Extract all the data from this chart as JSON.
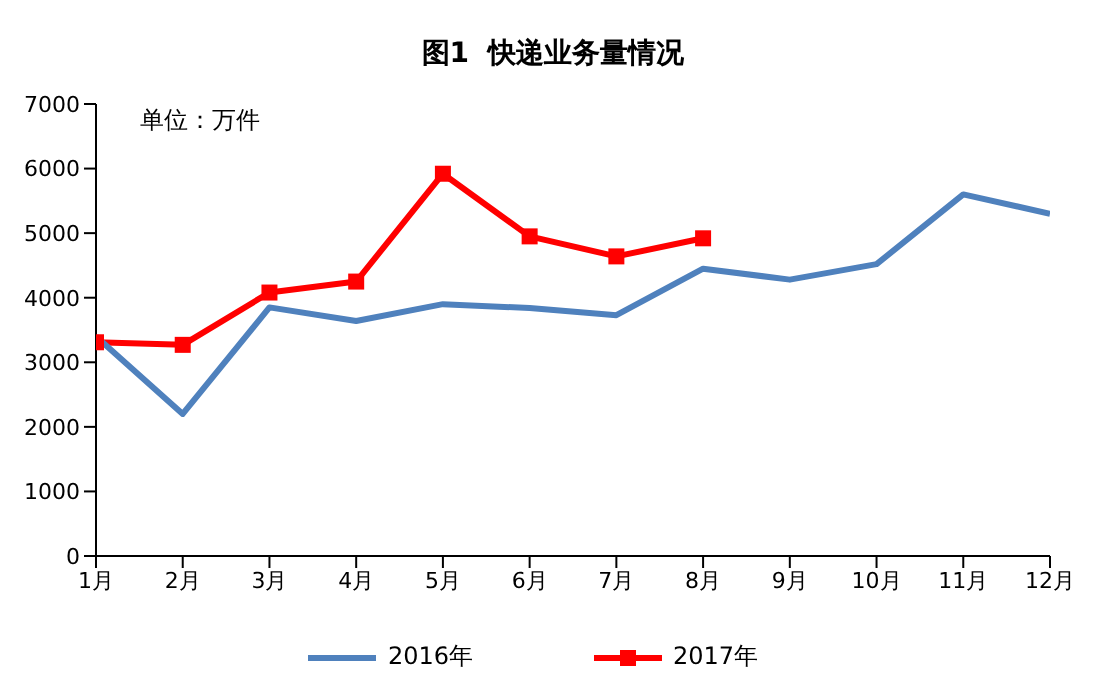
{
  "chart_data": {
    "type": "line",
    "title": "图1  快递业务量情况",
    "annotations": [
      "单位：万件"
    ],
    "categories": [
      "1月",
      "2月",
      "3月",
      "4月",
      "5月",
      "6月",
      "7月",
      "8月",
      "9月",
      "10月",
      "11月",
      "12月"
    ],
    "series": [
      {
        "name": "2016年",
        "color": "#4f81bd",
        "marker": "none",
        "values": [
          3400,
          2200,
          3850,
          3640,
          3900,
          3840,
          3730,
          4450,
          4280,
          4520,
          5600,
          5300
        ]
      },
      {
        "name": "2017年",
        "color": "#ff0000",
        "marker": "square",
        "values": [
          3310,
          3270,
          4080,
          4250,
          5920,
          4950,
          4640,
          4920,
          null,
          null,
          null,
          null
        ]
      }
    ],
    "ylim": [
      0,
      7000
    ],
    "yticks": [
      0,
      1000,
      2000,
      3000,
      4000,
      5000,
      6000,
      7000
    ],
    "grid": false,
    "legend": "bottom"
  }
}
